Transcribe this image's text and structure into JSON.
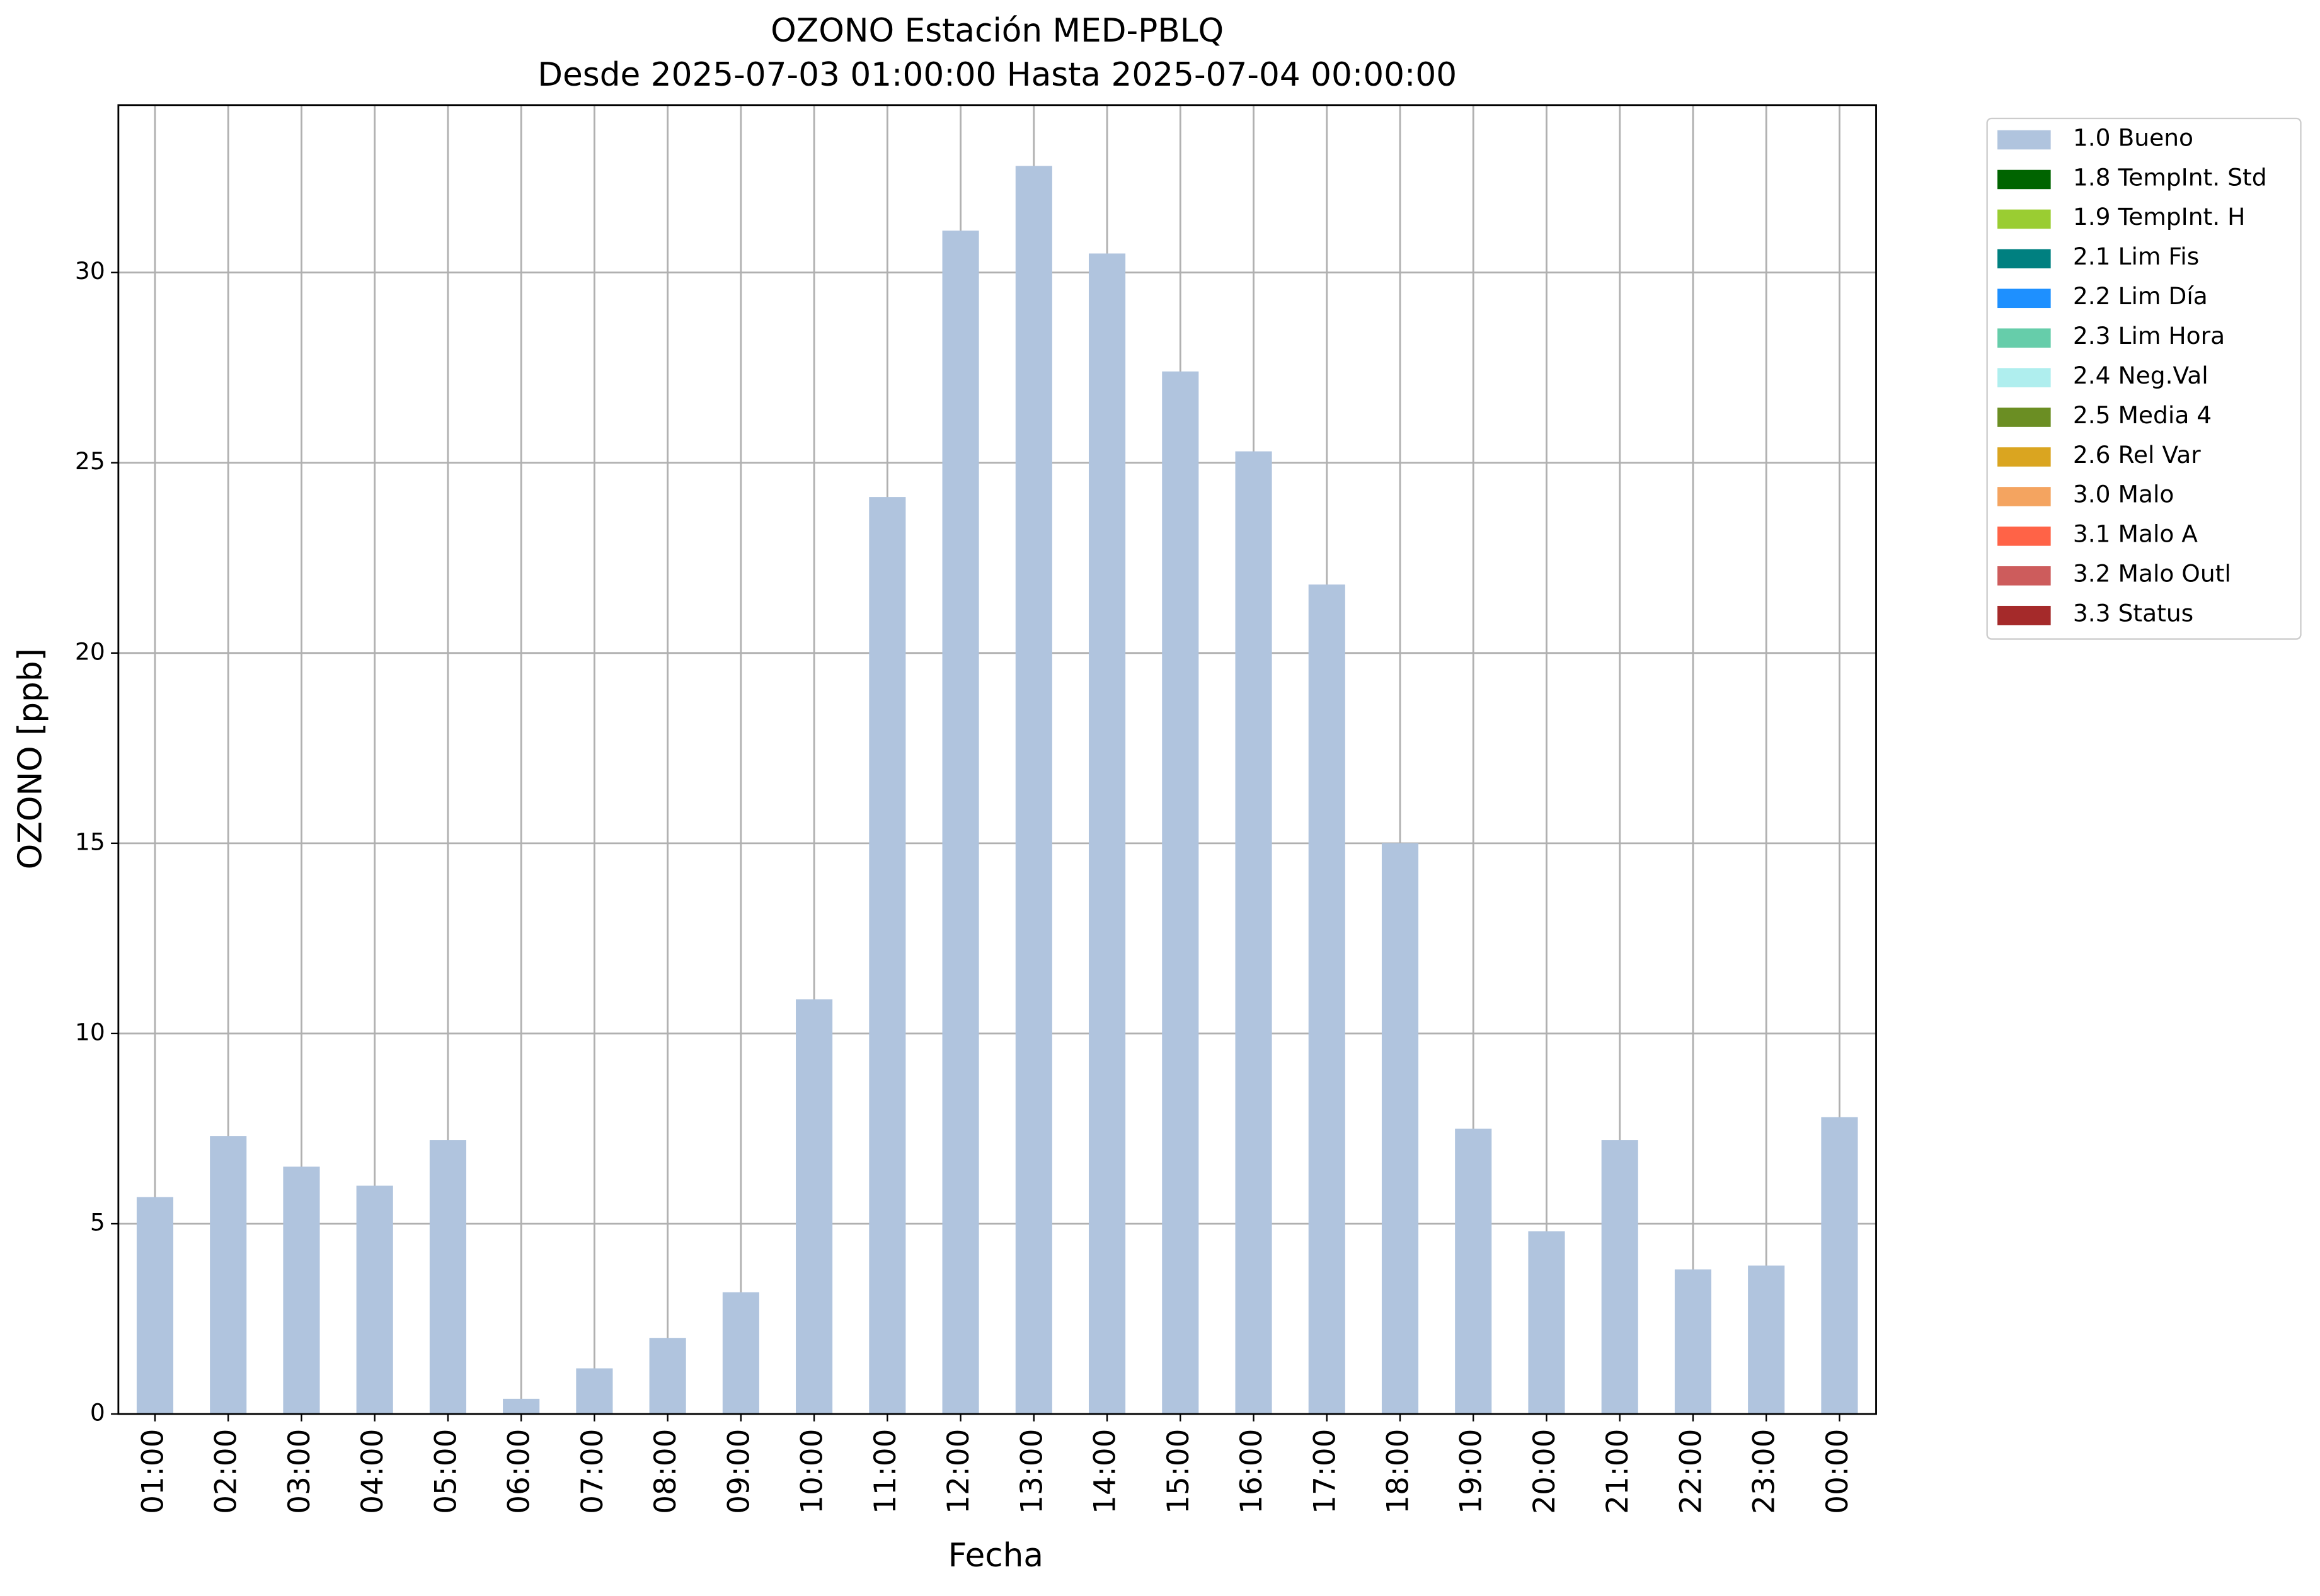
{
  "chart_data": {
    "type": "bar",
    "title": "OZONO Estación MED-PBLQ",
    "subtitle": "Desde 2025-07-03 01:00:00 Hasta 2025-07-04 00:00:00",
    "x_label": "Fecha",
    "y_label": "OZONO [ppb]",
    "categories": [
      "01:00",
      "02:00",
      "03:00",
      "04:00",
      "05:00",
      "06:00",
      "07:00",
      "08:00",
      "09:00",
      "10:00",
      "11:00",
      "12:00",
      "13:00",
      "14:00",
      "15:00",
      "16:00",
      "17:00",
      "18:00",
      "19:00",
      "20:00",
      "21:00",
      "22:00",
      "23:00",
      "00:00"
    ],
    "series": [
      {
        "name": "1.0 Bueno",
        "color": "#b0c4de",
        "values": [
          5.7,
          7.3,
          6.5,
          6.0,
          7.2,
          0.4,
          1.2,
          2.0,
          3.2,
          10.9,
          24.1,
          31.1,
          32.8,
          30.5,
          27.4,
          25.3,
          21.8,
          15.0,
          7.5,
          4.8,
          7.2,
          3.8,
          3.9,
          7.8
        ]
      },
      {
        "name": "1.8 TempInt. Std",
        "color": "#006400"
      },
      {
        "name": "1.9 TempInt. H",
        "color": "#9acd32"
      },
      {
        "name": "2.1 Lim Fis",
        "color": "#008080"
      },
      {
        "name": "2.2 Lim Día",
        "color": "#1e90ff"
      },
      {
        "name": "2.3 Lim Hora",
        "color": "#66cdaa"
      },
      {
        "name": "2.4 Neg.Val",
        "color": "#afeeee"
      },
      {
        "name": "2.5 Media 4",
        "color": "#6b8e23"
      },
      {
        "name": "2.6 Rel Var",
        "color": "#daa520"
      },
      {
        "name": "3.0 Malo",
        "color": "#f4a460"
      },
      {
        "name": "3.1 Malo A",
        "color": "#ff6347"
      },
      {
        "name": "3.2 Malo Outl",
        "color": "#cd5c5c"
      },
      {
        "name": "3.3 Status",
        "color": "#a52a2a"
      }
    ],
    "ylim": [
      0,
      34.4
    ],
    "yticks": [
      0,
      5,
      10,
      15,
      20,
      25,
      30
    ],
    "grid": true,
    "legend": "outside upper right"
  }
}
